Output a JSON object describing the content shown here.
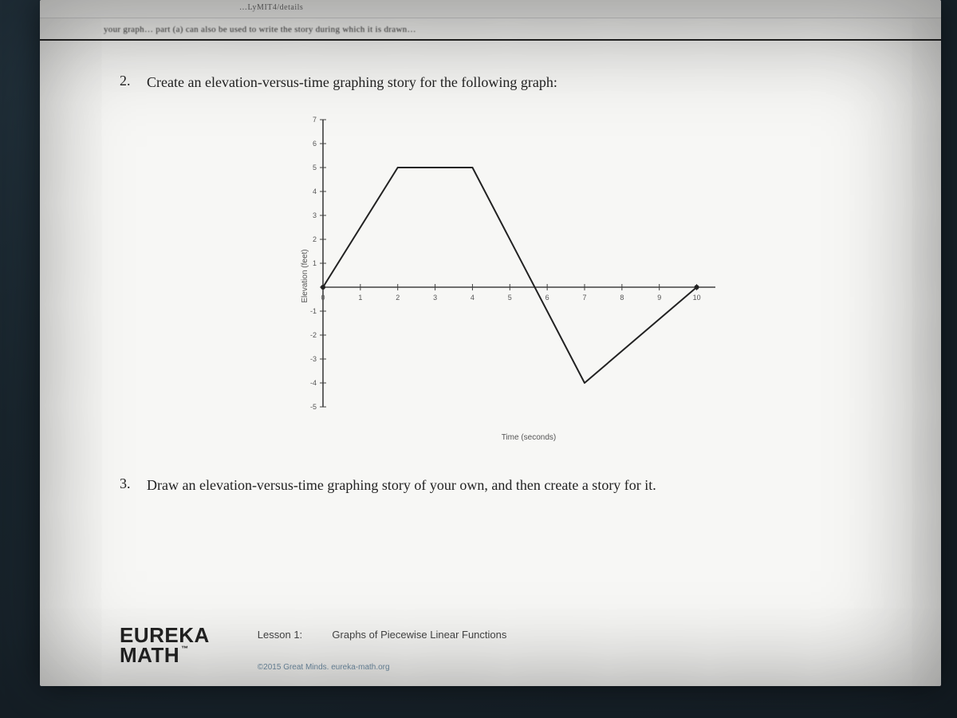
{
  "browser": {
    "url_fragment": "…LyMIT4/details"
  },
  "cutoff_line": "your graph… part (a) can also be used to write the story during which it is drawn…",
  "problems": {
    "p2": {
      "number": "2.",
      "text": "Create an elevation-versus-time graphing story for the following graph:"
    },
    "p3": {
      "number": "3.",
      "text": "Draw an elevation-versus-time graphing story of your own, and then create a story for it."
    }
  },
  "chart": {
    "type": "line",
    "xlabel": "Time (seconds)",
    "ylabel": "Elevation (feet)",
    "xlim": [
      0,
      10.5
    ],
    "ylim": [
      -5,
      7
    ],
    "xticks": [
      0,
      1,
      2,
      3,
      4,
      5,
      6,
      7,
      8,
      9,
      10
    ],
    "yticks": [
      -5,
      -4,
      -3,
      -2,
      -1,
      0,
      1,
      2,
      3,
      4,
      5,
      6,
      7
    ],
    "tick_fontsize": 9,
    "tick_color": "#555555",
    "axis_color": "#404040",
    "line_color": "#222222",
    "line_width": 2,
    "endpoint_marker_radius": 3,
    "background_color": "#f7f7f5",
    "points": [
      {
        "x": 0,
        "y": 0
      },
      {
        "x": 2,
        "y": 5
      },
      {
        "x": 4,
        "y": 5
      },
      {
        "x": 7,
        "y": -4
      },
      {
        "x": 10,
        "y": 0
      }
    ]
  },
  "footer": {
    "brand_line1": "EUREKA",
    "brand_line2": "MATH",
    "tm": "™",
    "lesson_label": "Lesson 1:",
    "lesson_title": "Graphs of Piecewise Linear Functions",
    "copyright": "©2015 Great Minds. eureka-math.org"
  },
  "colors": {
    "page_bg": "#f7f7f5",
    "text": "#2a2a2a",
    "brand": "#222222",
    "link_blur": "#6d8aa0"
  }
}
